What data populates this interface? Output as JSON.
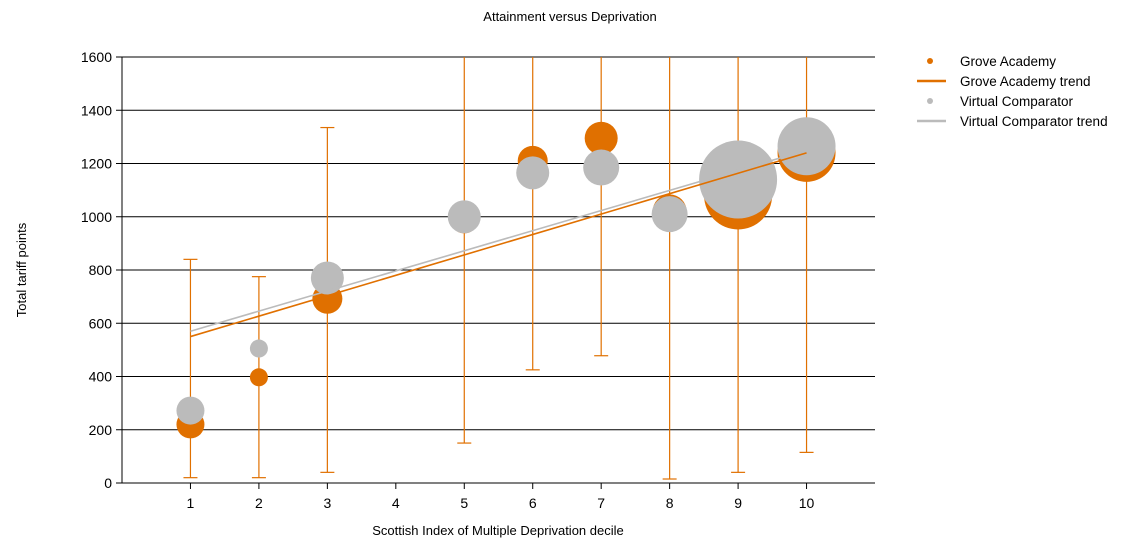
{
  "chart_data": {
    "type": "bubble",
    "title": "Attainment versus Deprivation",
    "xlabel": "Scottish Index of Multiple Deprivation decile",
    "ylabel": "Total tariff points",
    "xlim": [
      0,
      11
    ],
    "ylim": [
      0,
      1600
    ],
    "x_ticks": [
      1,
      2,
      3,
      4,
      5,
      6,
      7,
      8,
      9,
      10
    ],
    "y_ticks": [
      0,
      200,
      400,
      600,
      800,
      1000,
      1200,
      1400,
      1600
    ],
    "grid": "horizontal",
    "legend_position": "top-right",
    "series": [
      {
        "name": "Grove Academy",
        "color": "#E07000",
        "points": [
          {
            "x": 1,
            "y": 220,
            "size": 2
          },
          {
            "x": 2,
            "y": 397,
            "size": 1
          },
          {
            "x": 3,
            "y": 692,
            "size": 2.2
          },
          {
            "x": 5,
            "y": 990,
            "size": 2
          },
          {
            "x": 6,
            "y": 1210,
            "size": 2.2
          },
          {
            "x": 7,
            "y": 1295,
            "size": 2.5
          },
          {
            "x": 8,
            "y": 1020,
            "size": 2.6
          },
          {
            "x": 9,
            "y": 1080,
            "size": 6
          },
          {
            "x": 10,
            "y": 1240,
            "size": 5
          }
        ]
      },
      {
        "name": "Virtual Comparator",
        "color": "#BBBBBB",
        "points": [
          {
            "x": 1,
            "y": 272,
            "size": 2
          },
          {
            "x": 2,
            "y": 505,
            "size": 1
          },
          {
            "x": 3,
            "y": 770,
            "size": 2.5
          },
          {
            "x": 5,
            "y": 1000,
            "size": 2.5
          },
          {
            "x": 6,
            "y": 1165,
            "size": 2.5
          },
          {
            "x": 7,
            "y": 1185,
            "size": 2.8
          },
          {
            "x": 8,
            "y": 1010,
            "size": 2.8
          },
          {
            "x": 9,
            "y": 1140,
            "size": 7
          },
          {
            "x": 10,
            "y": 1265,
            "size": 5
          }
        ]
      }
    ],
    "error_bars": {
      "series": "Grove Academy",
      "color": "#E07000",
      "bars": [
        {
          "x": 1,
          "low": 20,
          "high": 840
        },
        {
          "x": 2,
          "low": 20,
          "high": 775
        },
        {
          "x": 3,
          "low": 40,
          "high": 1335
        },
        {
          "x": 5,
          "low": 150,
          "high": 1600
        },
        {
          "x": 6,
          "low": 425,
          "high": 1600
        },
        {
          "x": 7,
          "low": 478,
          "high": 1600
        },
        {
          "x": 8,
          "low": 15,
          "high": 1600
        },
        {
          "x": 9,
          "low": 40,
          "high": 1600
        },
        {
          "x": 10,
          "low": 115,
          "high": 1600
        }
      ]
    },
    "trendlines": [
      {
        "name": "Grove Academy trend",
        "color": "#E07000",
        "from": {
          "x": 1,
          "y": 550
        },
        "to": {
          "x": 10,
          "y": 1240
        }
      },
      {
        "name": "Virtual Comparator trend",
        "color": "#BBBBBB",
        "from": {
          "x": 1,
          "y": 570
        },
        "to": {
          "x": 10,
          "y": 1250
        }
      }
    ],
    "legend": [
      {
        "label": "Grove Academy",
        "kind": "dot",
        "color": "#E07000"
      },
      {
        "label": "Grove Academy trend",
        "kind": "line",
        "color": "#E07000"
      },
      {
        "label": "Virtual Comparator",
        "kind": "dot",
        "color": "#BBBBBB"
      },
      {
        "label": "Virtual Comparator trend",
        "kind": "line",
        "color": "#BBBBBB"
      }
    ]
  }
}
